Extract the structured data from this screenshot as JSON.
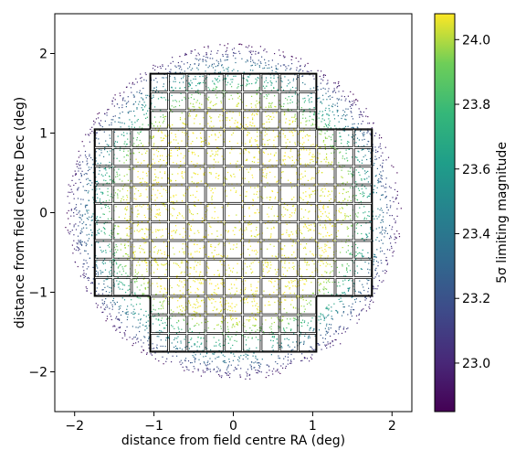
{
  "chart_data": {
    "type": "scatter",
    "title": "",
    "xlabel": "distance from field centre RA (deg)",
    "ylabel": "distance from field centre Dec (deg)",
    "xlim": [
      -2.25,
      2.25
    ],
    "ylim": [
      -2.5,
      2.5
    ],
    "xticks": [
      -2,
      -1,
      0,
      1,
      2
    ],
    "yticks": [
      -2,
      -1,
      0,
      1,
      2
    ],
    "xtick_labels": [
      "−2",
      "−1",
      "0",
      "1",
      "2"
    ],
    "ytick_labels": [
      "−2",
      "−1",
      "0",
      "1",
      "2"
    ],
    "grid": false,
    "colormap": "viridis",
    "field": {
      "shape": "circular scatter of limiting-magnitude samples",
      "radius_deg": 2.1,
      "magnitude_core": 24.05,
      "magnitude_edge": 22.85
    },
    "detector_grid": {
      "cell_size_deg": 0.235,
      "rows": [
        {
          "y_range": [
            1.05,
            1.75
          ],
          "x_range": [
            -1.05,
            1.05
          ]
        },
        {
          "y_range": [
            -1.05,
            1.05
          ],
          "x_range": [
            -1.75,
            1.75
          ]
        },
        {
          "y_range": [
            -1.75,
            -1.05
          ],
          "x_range": [
            -1.05,
            1.05
          ]
        }
      ],
      "outline": [
        [
          -1.05,
          1.75
        ],
        [
          1.05,
          1.75
        ],
        [
          1.05,
          1.05
        ],
        [
          1.75,
          1.05
        ],
        [
          1.75,
          -1.05
        ],
        [
          1.05,
          -1.05
        ],
        [
          1.05,
          -1.75
        ],
        [
          -1.05,
          -1.75
        ],
        [
          -1.05,
          -1.05
        ],
        [
          -1.75,
          -1.05
        ],
        [
          -1.75,
          1.05
        ],
        [
          -1.05,
          1.05
        ]
      ]
    },
    "colorbar": {
      "label": "5σ limiting magnitude",
      "vmin": 22.85,
      "vmax": 24.08,
      "ticks": [
        23.0,
        23.2,
        23.4,
        23.6,
        23.8,
        24.0
      ],
      "tick_labels": [
        "23.0",
        "23.2",
        "23.4",
        "23.6",
        "23.8",
        "24.0"
      ]
    }
  }
}
